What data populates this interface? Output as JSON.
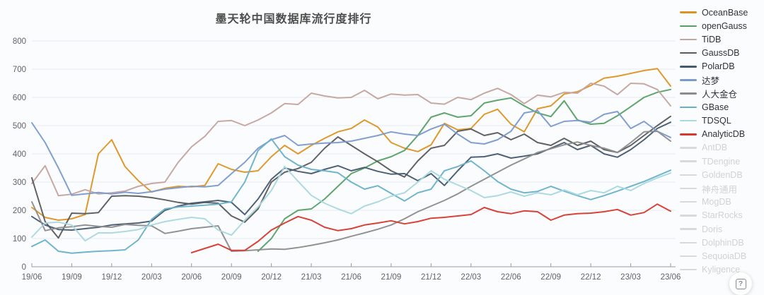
{
  "title": "墨天轮中国数据库流行度排行",
  "help_button": {
    "glyph": "?"
  },
  "chart_data": {
    "type": "line",
    "title": "墨天轮中国数据库流行度排行",
    "xlabel": "",
    "ylabel": "",
    "ylim": [
      0,
      800
    ],
    "y_ticks": [
      0,
      100,
      200,
      300,
      400,
      500,
      600,
      700,
      800
    ],
    "grid": true,
    "legend_position": "right",
    "x_quarter_labels": [
      "19/06",
      "19/09",
      "19/12",
      "20/03",
      "20/06",
      "20/09",
      "20/12",
      "21/03",
      "21/06",
      "21/09",
      "21/12",
      "22/03",
      "22/06",
      "22/09",
      "22/12",
      "23/03",
      "23/06"
    ],
    "months_per_label": 3,
    "points_total": 49,
    "series": [
      {
        "name": "OceanBase",
        "color": "#dd9322",
        "enabled": true,
        "values": [
          210,
          175,
          165,
          170,
          185,
          400,
          450,
          355,
          305,
          265,
          278,
          285,
          283,
          288,
          365,
          345,
          335,
          340,
          390,
          430,
          400,
          430,
          455,
          478,
          490,
          520,
          495,
          440,
          420,
          408,
          432,
          508,
          485,
          490,
          540,
          558,
          505,
          478,
          560,
          570,
          612,
          620,
          642,
          668,
          675,
          685,
          695,
          702,
          640
        ]
      },
      {
        "name": "openGauss",
        "color": "#57a065",
        "enabled": true,
        "values": [
          null,
          null,
          null,
          null,
          null,
          null,
          null,
          null,
          null,
          null,
          null,
          null,
          null,
          null,
          null,
          null,
          null,
          55,
          100,
          170,
          200,
          205,
          240,
          285,
          330,
          350,
          375,
          390,
          412,
          465,
          530,
          545,
          530,
          535,
          580,
          590,
          598,
          570,
          545,
          532,
          588,
          520,
          505,
          508,
          535,
          567,
          600,
          618,
          628
        ]
      },
      {
        "name": "TiDB",
        "color": "#c4a49e",
        "enabled": true,
        "values": [
          295,
          358,
          252,
          257,
          273,
          258,
          262,
          268,
          285,
          295,
          300,
          370,
          425,
          462,
          515,
          518,
          500,
          520,
          545,
          578,
          575,
          615,
          605,
          598,
          600,
          625,
          595,
          612,
          608,
          610,
          580,
          576,
          600,
          592,
          615,
          632,
          610,
          578,
          608,
          602,
          618,
          615,
          650,
          640,
          610,
          650,
          648,
          628,
          570
        ]
      },
      {
        "name": "GaussDB",
        "color": "#595a5c",
        "enabled": true,
        "values": [
          315,
          160,
          102,
          190,
          188,
          192,
          250,
          252,
          250,
          245,
          237,
          228,
          222,
          228,
          225,
          180,
          158,
          205,
          300,
          335,
          348,
          370,
          420,
          460,
          430,
          400,
          372,
          340,
          318,
          375,
          420,
          430,
          480,
          488,
          465,
          475,
          450,
          470,
          440,
          430,
          455,
          430,
          445,
          415,
          405,
          430,
          465,
          500,
          533
        ]
      },
      {
        "name": "PolarDB",
        "color": "#46596f",
        "enabled": true,
        "values": [
          178,
          148,
          132,
          130,
          135,
          140,
          148,
          152,
          155,
          162,
          200,
          215,
          225,
          230,
          235,
          228,
          185,
          240,
          310,
          350,
          338,
          330,
          345,
          358,
          340,
          352,
          338,
          328,
          330,
          305,
          330,
          288,
          340,
          388,
          390,
          400,
          385,
          392,
          400,
          420,
          440,
          415,
          430,
          400,
          388,
          415,
          450,
          490,
          512
        ]
      },
      {
        "name": "达梦",
        "color": "#7a9ace",
        "enabled": true,
        "values": [
          510,
          440,
          350,
          253,
          258,
          263,
          258,
          264,
          260,
          266,
          275,
          280,
          285,
          283,
          288,
          330,
          370,
          420,
          450,
          465,
          430,
          435,
          438,
          440,
          445,
          455,
          465,
          478,
          470,
          465,
          488,
          505,
          470,
          440,
          435,
          450,
          480,
          545,
          553,
          497,
          515,
          518,
          512,
          540,
          550,
          490,
          515,
          480,
          458
        ]
      },
      {
        "name": "人大金仓",
        "color": "#8c8c8c",
        "enabled": true,
        "values": [
          230,
          128,
          138,
          142,
          148,
          143,
          140,
          150,
          147,
          145,
          118,
          126,
          135,
          140,
          145,
          55,
          57,
          60,
          63,
          62,
          68,
          76,
          85,
          95,
          108,
          120,
          133,
          148,
          170,
          195,
          215,
          235,
          258,
          285,
          310,
          335,
          360,
          382,
          405,
          418,
          432,
          442,
          430,
          420,
          405,
          440,
          478,
          480,
          445
        ]
      },
      {
        "name": "GBase",
        "color": "#68b1c8",
        "enabled": true,
        "values": [
          72,
          95,
          55,
          48,
          52,
          55,
          57,
          60,
          95,
          168,
          205,
          212,
          215,
          218,
          222,
          230,
          300,
          412,
          453,
          390,
          360,
          345,
          340,
          333,
          300,
          275,
          287,
          260,
          233,
          262,
          275,
          340,
          355,
          375,
          340,
          302,
          275,
          262,
          267,
          285,
          268,
          252,
          238,
          252,
          268,
          285,
          302,
          322,
          342
        ]
      },
      {
        "name": "TDSQL",
        "color": "#a9d8de",
        "enabled": true,
        "values": [
          105,
          155,
          158,
          148,
          92,
          120,
          120,
          125,
          132,
          148,
          160,
          168,
          175,
          170,
          130,
          112,
          165,
          212,
          270,
          355,
          303,
          253,
          225,
          205,
          188,
          215,
          230,
          250,
          262,
          300,
          340,
          310,
          290,
          270,
          245,
          252,
          265,
          250,
          262,
          255,
          272,
          255,
          270,
          262,
          285,
          270,
          295,
          315,
          332
        ]
      },
      {
        "name": "AnalyticDB",
        "color": "#d6392e",
        "enabled": true,
        "values": [
          null,
          null,
          null,
          null,
          null,
          null,
          null,
          null,
          null,
          null,
          null,
          null,
          50,
          65,
          80,
          58,
          58,
          90,
          130,
          155,
          178,
          165,
          140,
          128,
          135,
          148,
          155,
          163,
          152,
          160,
          172,
          175,
          180,
          185,
          210,
          195,
          188,
          198,
          195,
          165,
          183,
          188,
          190,
          195,
          203,
          183,
          192,
          222,
          197
        ]
      },
      {
        "name": "AntDB",
        "color": "#d9d9d9",
        "enabled": false,
        "values": []
      },
      {
        "name": "TDengine",
        "color": "#d9d9d9",
        "enabled": false,
        "values": []
      },
      {
        "name": "GoldenDB",
        "color": "#d9d9d9",
        "enabled": false,
        "values": []
      },
      {
        "name": "神舟通用",
        "color": "#d9d9d9",
        "enabled": false,
        "values": []
      },
      {
        "name": "MogDB",
        "color": "#d9d9d9",
        "enabled": false,
        "values": []
      },
      {
        "name": "StarRocks",
        "color": "#d9d9d9",
        "enabled": false,
        "values": []
      },
      {
        "name": "Doris",
        "color": "#d9d9d9",
        "enabled": false,
        "values": []
      },
      {
        "name": "DolphinDB",
        "color": "#d9d9d9",
        "enabled": false,
        "values": []
      },
      {
        "name": "SequoiaDB",
        "color": "#d9d9d9",
        "enabled": false,
        "values": []
      },
      {
        "name": "Kyligence",
        "color": "#d9d9d9",
        "enabled": false,
        "values": []
      }
    ],
    "axis_style": {
      "grid_color": "#e4ecf5",
      "axis_color": "#979aa0",
      "tick_label_color": "#5f6368"
    }
  }
}
